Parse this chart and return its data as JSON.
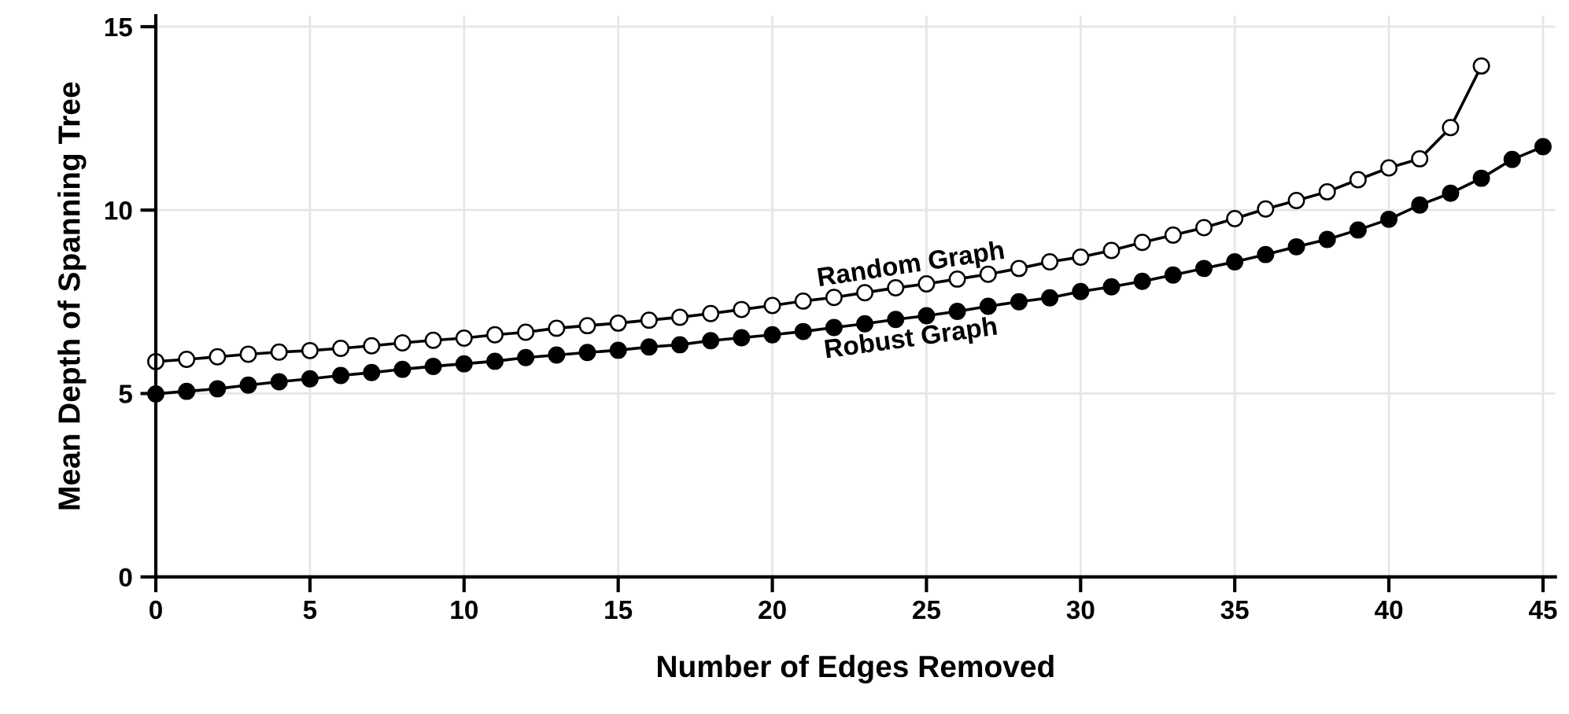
{
  "chart_data": {
    "type": "line",
    "xlabel": "Number of Edges Removed",
    "ylabel": "Mean Depth of Spanning Tree",
    "xlim": [
      0,
      45.4
    ],
    "xticks": [
      0,
      5,
      10,
      15,
      20,
      25,
      30,
      35,
      40,
      45
    ],
    "ylim": [
      0,
      15.3
    ],
    "yticks": [
      0,
      5,
      10,
      15
    ],
    "grid": true,
    "marker": "circle",
    "line_style": "solid",
    "legend": false,
    "series": [
      {
        "name": "Random Graph",
        "color": "#000000",
        "x": [
          0,
          1,
          2,
          3,
          4,
          5,
          6,
          7,
          8,
          9,
          10,
          11,
          12,
          13,
          14,
          15,
          16,
          17,
          18,
          19,
          20,
          21,
          22,
          23,
          24,
          25,
          26,
          27,
          28,
          29,
          30,
          31,
          32,
          33,
          34,
          35,
          36,
          37,
          38,
          39,
          40,
          41,
          42,
          43
        ],
        "values": [
          5.87,
          5.93,
          6.0,
          6.07,
          6.13,
          6.17,
          6.23,
          6.3,
          6.38,
          6.45,
          6.51,
          6.6,
          6.67,
          6.78,
          6.85,
          6.92,
          7.0,
          7.08,
          7.18,
          7.29,
          7.4,
          7.52,
          7.62,
          7.75,
          7.88,
          7.99,
          8.12,
          8.25,
          8.41,
          8.59,
          8.72,
          8.9,
          9.12,
          9.32,
          9.52,
          9.77,
          10.03,
          10.26,
          10.5,
          10.83,
          11.15,
          11.4,
          12.25,
          13.93
        ]
      },
      {
        "name": "Robust Graph",
        "color": "#000000",
        "x": [
          0,
          1,
          2,
          3,
          4,
          5,
          6,
          7,
          8,
          9,
          10,
          11,
          12,
          13,
          14,
          15,
          16,
          17,
          18,
          19,
          20,
          21,
          22,
          23,
          24,
          25,
          26,
          27,
          28,
          29,
          30,
          31,
          32,
          33,
          34,
          35,
          36,
          37,
          38,
          39,
          40,
          41,
          42,
          43,
          44,
          45
        ],
        "values": [
          4.99,
          5.06,
          5.13,
          5.23,
          5.32,
          5.4,
          5.49,
          5.57,
          5.66,
          5.74,
          5.81,
          5.88,
          5.98,
          6.05,
          6.12,
          6.18,
          6.27,
          6.33,
          6.44,
          6.52,
          6.6,
          6.69,
          6.8,
          6.9,
          7.02,
          7.12,
          7.24,
          7.38,
          7.5,
          7.61,
          7.78,
          7.91,
          8.06,
          8.23,
          8.41,
          8.59,
          8.79,
          9.0,
          9.2,
          9.46,
          9.75,
          10.14,
          10.46,
          10.87,
          11.38,
          11.73
        ]
      }
    ]
  }
}
